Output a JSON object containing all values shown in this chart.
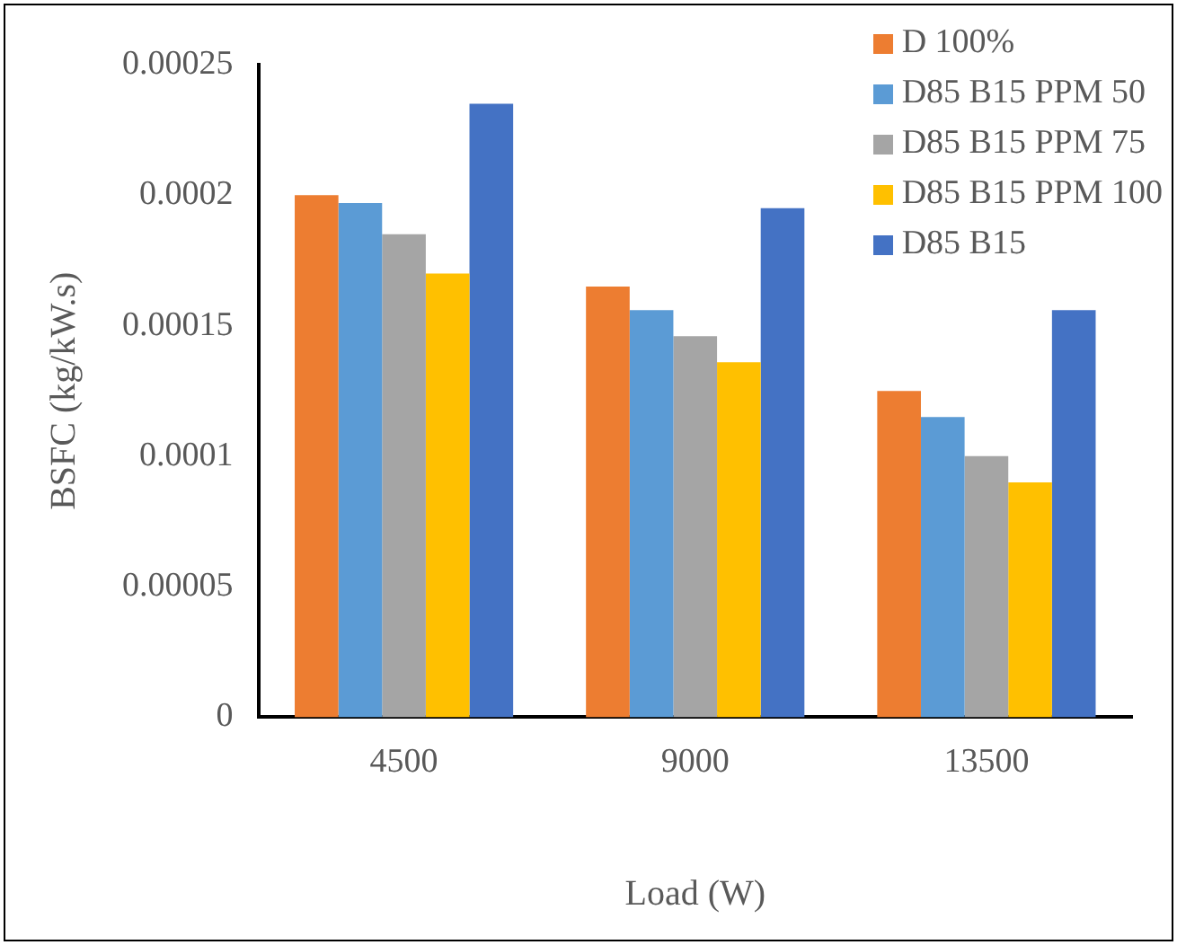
{
  "chart_data": {
    "type": "bar",
    "xlabel": "Load (W)",
    "ylabel": "BSFC (kg/kW.s)",
    "categories": [
      "4500",
      "9000",
      "13500"
    ],
    "series": [
      {
        "name": "D 100%",
        "color": "#ed7d31",
        "values": [
          0.0002,
          0.000165,
          0.000125
        ]
      },
      {
        "name": "D85 B15 PPM 50",
        "color": "#5b9bd5",
        "values": [
          0.000197,
          0.000156,
          0.000115
        ]
      },
      {
        "name": "D85 B15 PPM 75",
        "color": "#a5a5a5",
        "values": [
          0.000185,
          0.000146,
          0.0001
        ]
      },
      {
        "name": "D85 B15 PPM 100",
        "color": "#ffc000",
        "values": [
          0.00017,
          0.000136,
          9e-05
        ]
      },
      {
        "name": "D85 B15",
        "color": "#4472c4",
        "values": [
          0.000235,
          0.000195,
          0.000156
        ]
      }
    ],
    "ylim": [
      0,
      0.00025
    ],
    "yticks": [
      0,
      {
        "value": 5e-05,
        "label": "0.00005"
      },
      0.0001,
      0.00015,
      0.0002,
      0.00025
    ],
    "grid": false,
    "legend": "top right"
  }
}
